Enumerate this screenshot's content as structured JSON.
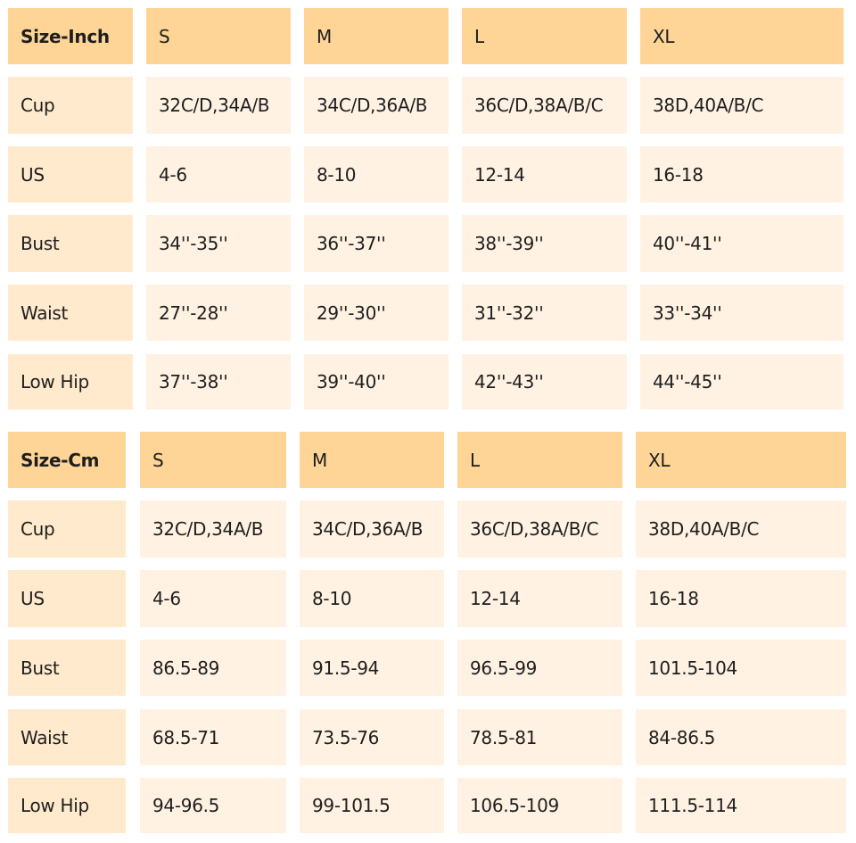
{
  "colors": {
    "header": "#fed596",
    "label_column": "#ffeacd",
    "value_cell": "#fff2e2"
  },
  "tables": [
    {
      "headers": [
        "Size-Inch",
        "S",
        "M",
        "L",
        "XL"
      ],
      "rows": [
        [
          "Cup",
          "32C/D,34A/B",
          "34C/D,36A/B",
          "36C/D,38A/B/C",
          "38D,40A/B/C"
        ],
        [
          "US",
          "4-6",
          "8-10",
          "12-14",
          "16-18"
        ],
        [
          "Bust",
          "34''-35''",
          "36''-37''",
          "38''-39''",
          "40''-41''"
        ],
        [
          "Waist",
          "27''-28''",
          "29''-30''",
          "31''-32''",
          "33''-34''"
        ],
        [
          "Low Hip",
          "37''-38''",
          "39''-40''",
          "42''-43''",
          "44''-45''"
        ]
      ]
    },
    {
      "headers": [
        "Size-Cm",
        "S",
        "M",
        "L",
        "XL"
      ],
      "rows": [
        [
          "Cup",
          "32C/D,34A/B",
          "34C/D,36A/B",
          "36C/D,38A/B/C",
          "38D,40A/B/C"
        ],
        [
          "US",
          "4-6",
          "8-10",
          "12-14",
          "16-18"
        ],
        [
          "Bust",
          "86.5-89",
          "91.5-94",
          "96.5-99",
          "101.5-104"
        ],
        [
          "Waist",
          "68.5-71",
          "73.5-76",
          "78.5-81",
          "84-86.5"
        ],
        [
          "Low Hip",
          "94-96.5",
          "99-101.5",
          "106.5-109",
          "111.5-114"
        ]
      ]
    }
  ]
}
